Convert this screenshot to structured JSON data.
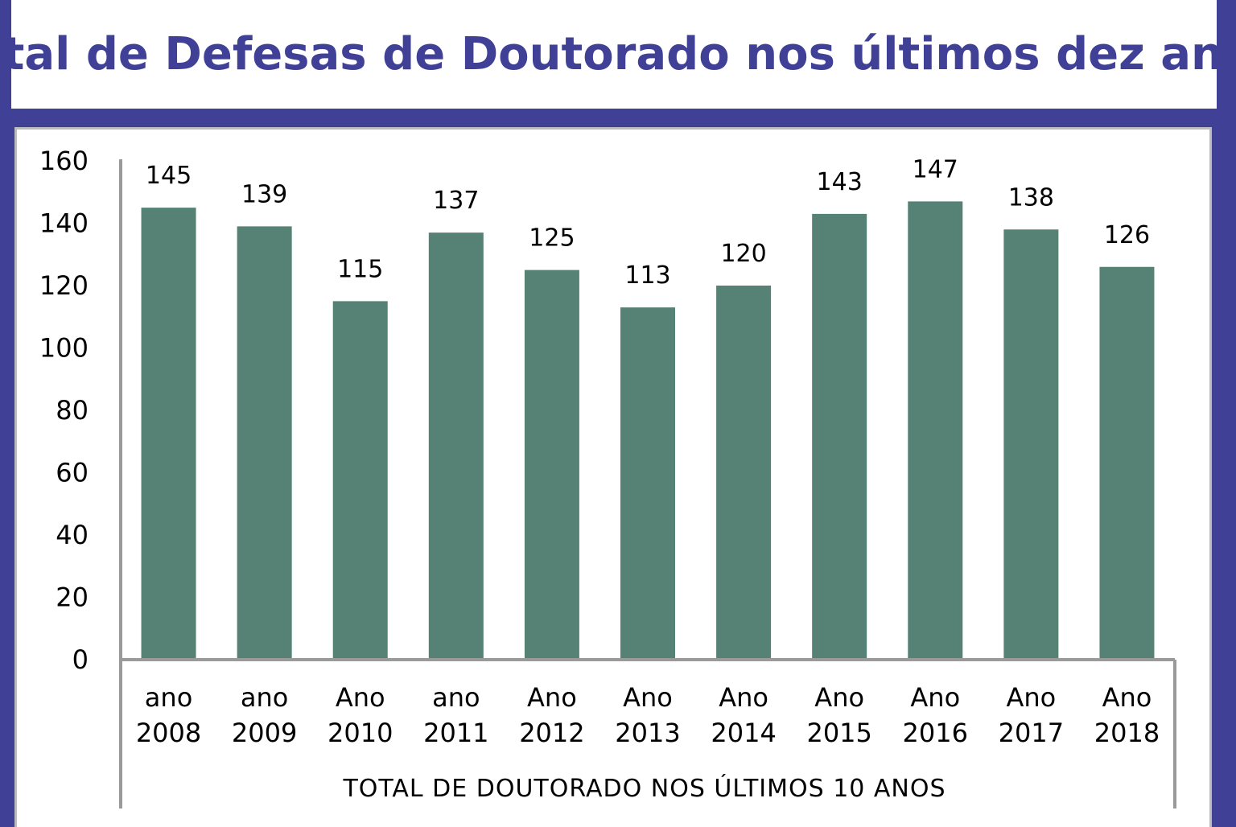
{
  "title": "Total de Defesas de Doutorado nos últimos dez anos",
  "colors": {
    "frame": "#3f4096",
    "bar": "#568276",
    "axis": "#9a9a9a"
  },
  "chart_data": {
    "type": "bar",
    "title": "Total de Defesas de Doutorado nos últimos dez anos",
    "xlabel": "TOTAL DE DOUTORADO NOS ÚLTIMOS 10 ANOS",
    "ylabel": "",
    "ylim": [
      0,
      160
    ],
    "yticks": [
      0,
      20,
      40,
      60,
      80,
      100,
      120,
      140,
      160
    ],
    "grid": false,
    "categories": [
      [
        "ano",
        "2008"
      ],
      [
        "ano",
        "2009"
      ],
      [
        "Ano",
        "2010"
      ],
      [
        "ano",
        "2011"
      ],
      [
        "Ano",
        "2012"
      ],
      [
        "Ano",
        "2013"
      ],
      [
        "Ano",
        "2014"
      ],
      [
        "Ano",
        "2015"
      ],
      [
        "Ano",
        "2016"
      ],
      [
        "Ano",
        "2017"
      ],
      [
        "Ano",
        "2018"
      ]
    ],
    "values": [
      145,
      139,
      115,
      137,
      125,
      113,
      120,
      143,
      147,
      138,
      126
    ]
  }
}
